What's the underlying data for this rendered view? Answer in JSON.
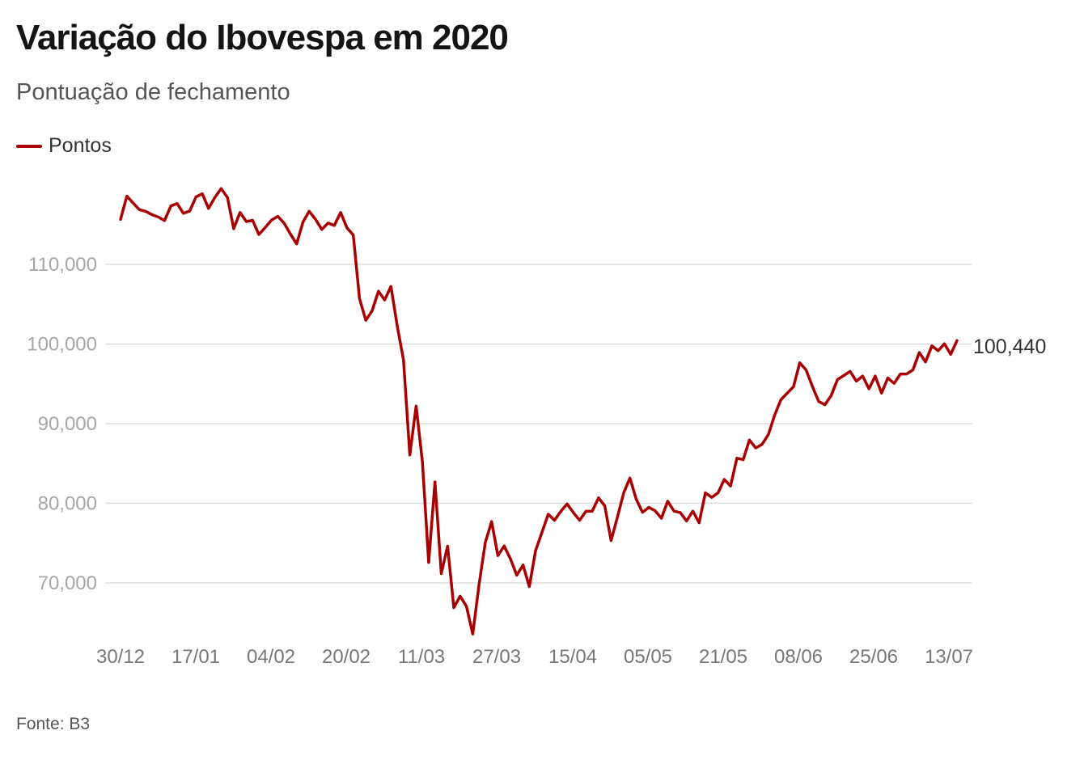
{
  "title": "Variação do Ibovespa em 2020",
  "subtitle": "Pontuação de fechamento",
  "source": "Fonte: B3",
  "colors": {
    "line": "#a80000",
    "grid": "#dddddd"
  },
  "chart_data": {
    "type": "line",
    "title": "Variação do Ibovespa em 2020",
    "subtitle": "Pontuação de fechamento",
    "xlabel": "",
    "ylabel": "",
    "ylim": [
      63000,
      120000
    ],
    "y_ticks": [
      70000,
      80000,
      90000,
      100000,
      110000
    ],
    "y_tick_labels": [
      "70,000",
      "80,000",
      "90,000",
      "100,000",
      "110,000"
    ],
    "x_tick_labels": [
      "30/12",
      "17/01",
      "04/02",
      "20/02",
      "11/03",
      "27/03",
      "15/04",
      "05/05",
      "21/05",
      "08/06",
      "25/06",
      "13/07"
    ],
    "grid": true,
    "legend_position": "top-left",
    "end_label": "100,440",
    "series": [
      {
        "name": "Pontos",
        "values": [
          115645,
          118573,
          117707,
          116878,
          116662,
          116247,
          115947,
          115503,
          117325,
          117632,
          116414,
          116703,
          118478,
          118861,
          117026,
          118391,
          119527,
          118391,
          114482,
          116518,
          115385,
          115530,
          113761,
          114630,
          115557,
          116028,
          115190,
          113831,
          112570,
          115309,
          116674,
          115663,
          114381,
          115191,
          114897,
          116518,
          114586,
          113681,
          105718,
          102984,
          104172,
          106625,
          105537,
          107224,
          102233,
          97997,
          86067,
          92214,
          85171,
          72583,
          82678,
          71168,
          74617,
          66895,
          68331,
          67069,
          63570,
          69729,
          75076,
          77710,
          73429,
          74640,
          73020,
          70967,
          72253,
          69538,
          74073,
          76335,
          78625,
          77872,
          78972,
          79918,
          78831,
          77871,
          78993,
          79011,
          80687,
          79673,
          75331,
          78239,
          81312,
          83171,
          80506,
          78876,
          79489,
          79065,
          78119,
          80263,
          79011,
          78829,
          77772,
          79011,
          77557,
          81319,
          80741,
          81312,
          82996,
          82173,
          85663,
          85469,
          87946,
          86949,
          87403,
          88620,
          91046,
          93002,
          93828,
          94637,
          97645,
          96747,
          94686,
          92796,
          92375,
          93531,
          95547,
          96045,
          96572,
          95336,
          95975,
          94377,
          95983,
          93834,
          95735,
          95055,
          96235,
          96235,
          96765,
          98937,
          97761,
          99769,
          99160,
          100031,
          98697,
          100440
        ]
      }
    ]
  }
}
